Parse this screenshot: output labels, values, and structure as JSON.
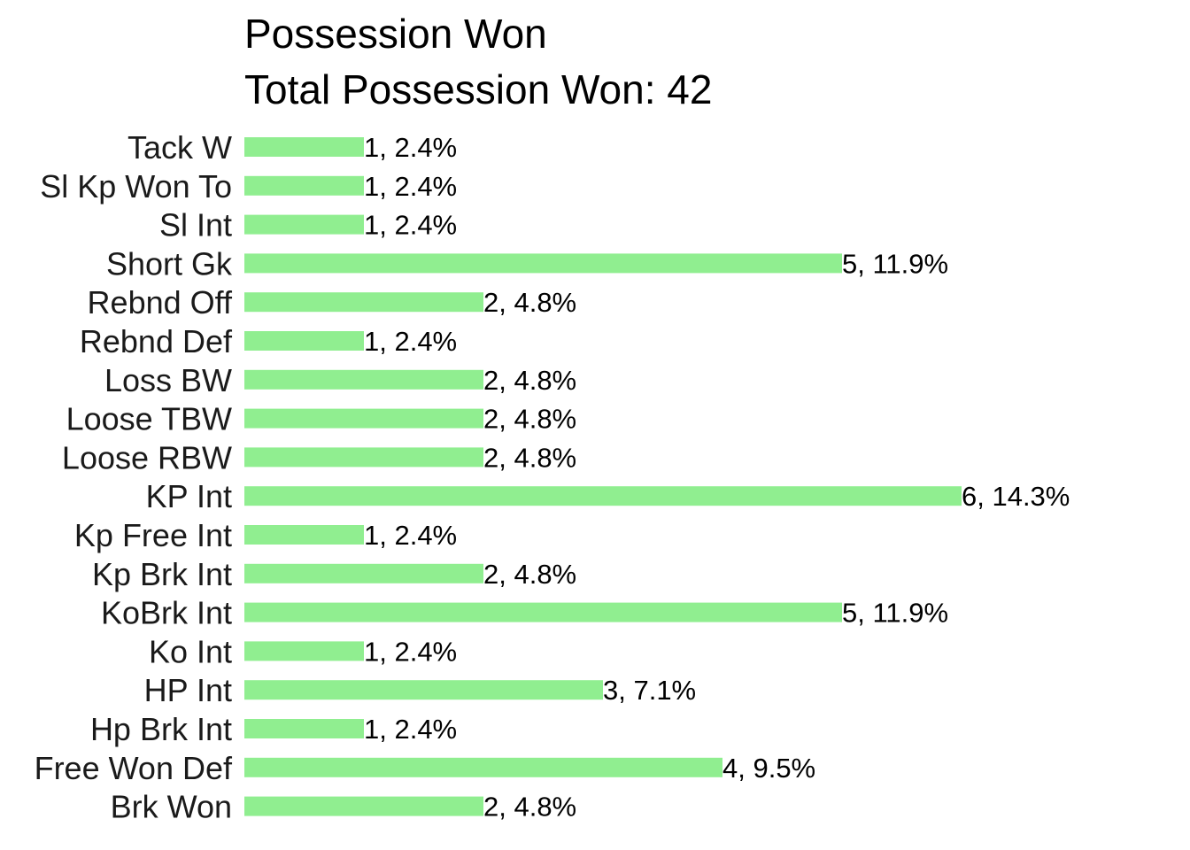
{
  "chart_data": {
    "type": "bar",
    "orientation": "horizontal",
    "title": "Possession Won",
    "subtitle": "Total Possession Won: 42",
    "total": 42,
    "bar_color": "#90EE90",
    "grid": false,
    "xlim": [
      0,
      6
    ],
    "categories": [
      "Tack W",
      "Sl Kp Won To",
      "Sl Int",
      "Short Gk",
      "Rebnd Off",
      "Rebnd Def",
      "Loss BW",
      "Loose TBW",
      "Loose RBW",
      "KP Int",
      "Kp Free Int",
      "Kp Brk Int",
      "KoBrk Int",
      "Ko Int",
      "HP Int",
      "Hp Brk Int",
      "Free Won Def",
      "Brk Won"
    ],
    "values": [
      1,
      1,
      1,
      5,
      2,
      1,
      2,
      2,
      2,
      6,
      1,
      2,
      5,
      1,
      3,
      1,
      4,
      2
    ],
    "labels": [
      "1, 2.4%",
      "1, 2.4%",
      "1, 2.4%",
      "5, 11.9%",
      "2, 4.8%",
      "1, 2.4%",
      "2, 4.8%",
      "2, 4.8%",
      "2, 4.8%",
      "6, 14.3%",
      "1, 2.4%",
      "2, 4.8%",
      "5, 11.9%",
      "1, 2.4%",
      "3, 7.1%",
      "1, 2.4%",
      "4, 9.5%",
      "2, 4.8%"
    ]
  }
}
